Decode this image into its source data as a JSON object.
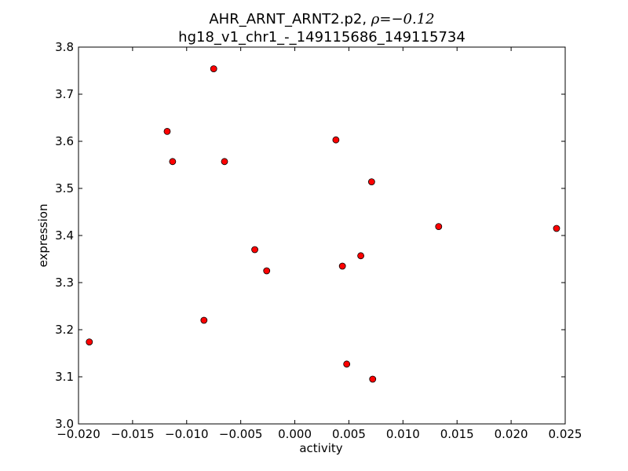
{
  "chart_data": {
    "type": "scatter",
    "title": "AHR_ARNT_ARNT2.p2, ",
    "title_rho_symbol": "ρ",
    "title_rho_value": "=−0.12",
    "subtitle": "hg18_v1_chr1_-_149115686_149115734",
    "xlabel": "activity",
    "ylabel": "expression",
    "xlim": [
      -0.02,
      0.025
    ],
    "ylim": [
      3.0,
      3.8
    ],
    "xticks": [
      "−0.020",
      "−0.015",
      "−0.010",
      "−0.005",
      "0.000",
      "0.005",
      "0.010",
      "0.015",
      "0.020",
      "0.025"
    ],
    "yticks": [
      "3.0",
      "3.1",
      "3.2",
      "3.3",
      "3.4",
      "3.5",
      "3.6",
      "3.7",
      "3.8"
    ],
    "grid": false,
    "marker_color": "#ff0000",
    "marker_edge_color": "#000000",
    "points": [
      {
        "x": -0.0075,
        "y": 3.754
      },
      {
        "x": -0.0118,
        "y": 3.621
      },
      {
        "x": -0.0113,
        "y": 3.557
      },
      {
        "x": -0.0065,
        "y": 3.557
      },
      {
        "x": 0.0038,
        "y": 3.603
      },
      {
        "x": 0.0071,
        "y": 3.514
      },
      {
        "x": 0.0133,
        "y": 3.419
      },
      {
        "x": 0.0242,
        "y": 3.415
      },
      {
        "x": -0.0037,
        "y": 3.37
      },
      {
        "x": 0.0061,
        "y": 3.357
      },
      {
        "x": 0.0044,
        "y": 3.335
      },
      {
        "x": -0.0026,
        "y": 3.325
      },
      {
        "x": -0.0084,
        "y": 3.22
      },
      {
        "x": -0.019,
        "y": 3.174
      },
      {
        "x": 0.0048,
        "y": 3.127
      },
      {
        "x": 0.0072,
        "y": 3.095
      }
    ]
  }
}
